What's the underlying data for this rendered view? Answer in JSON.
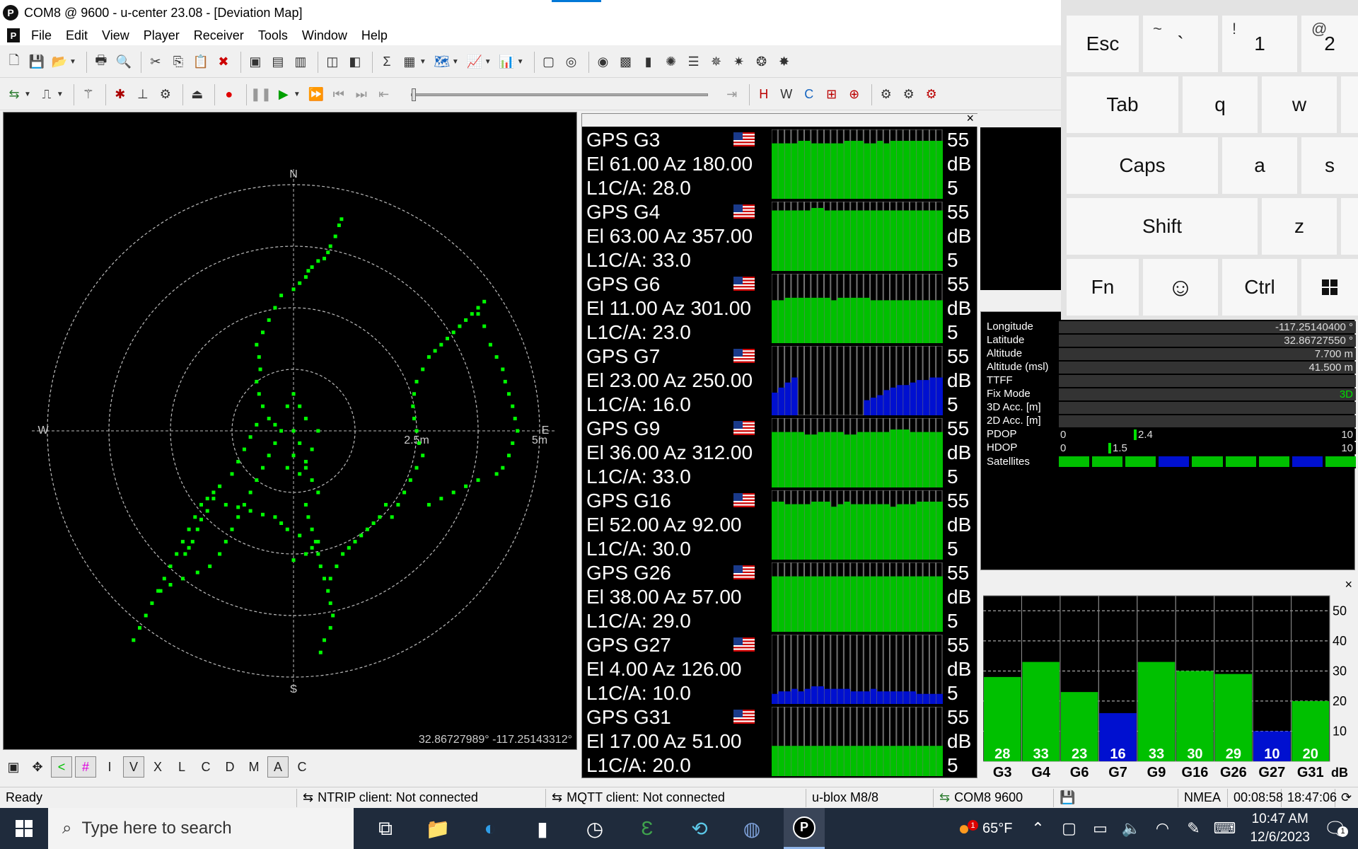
{
  "window": {
    "title": "COM8 @ 9600 - u-center 23.08 - [Deviation Map]",
    "logo_letter": "P"
  },
  "menu": [
    "File",
    "Edit",
    "View",
    "Player",
    "Receiver",
    "Tools",
    "Window",
    "Help"
  ],
  "map": {
    "compass": {
      "n": "N",
      "s": "S",
      "e": "E",
      "w": "W"
    },
    "ring_labels": {
      "inner": "2.5m",
      "outer": "5m"
    },
    "coord_readout": "32.86727989° -117.25143312°",
    "track_color": "#00ff00",
    "track": [
      [
        0.39,
        -1.72
      ],
      [
        0.37,
        -1.67
      ],
      [
        0.34,
        -1.58
      ],
      [
        0.3,
        -1.5
      ],
      [
        0.28,
        -1.45
      ],
      [
        0.25,
        -1.4
      ],
      [
        0.2,
        -1.38
      ],
      [
        0.15,
        -1.33
      ],
      [
        0.12,
        -1.3
      ],
      [
        0.1,
        -1.25
      ],
      [
        0.05,
        -1.2
      ],
      [
        0.0,
        -1.15
      ],
      [
        -0.1,
        -1.1
      ],
      [
        -0.15,
        -1.0
      ],
      [
        -0.2,
        -0.9
      ],
      [
        -0.25,
        -0.8
      ],
      [
        -0.3,
        -0.7
      ],
      [
        -0.28,
        -0.6
      ],
      [
        -0.27,
        -0.5
      ],
      [
        -0.3,
        -0.4
      ],
      [
        -0.28,
        -0.3
      ],
      [
        -0.25,
        -0.2
      ],
      [
        -0.2,
        -0.1
      ],
      [
        -0.15,
        -0.05
      ],
      [
        -0.1,
        0.0
      ],
      [
        -0.15,
        0.1
      ],
      [
        -0.2,
        0.2
      ],
      [
        -0.25,
        0.3
      ],
      [
        -0.3,
        0.4
      ],
      [
        -0.35,
        0.5
      ],
      [
        -0.4,
        0.6
      ],
      [
        -0.45,
        0.7
      ],
      [
        -0.5,
        0.8
      ],
      [
        -0.55,
        0.9
      ],
      [
        -0.6,
        1.0
      ],
      [
        -0.68,
        1.1
      ],
      [
        -0.78,
        1.15
      ],
      [
        -0.9,
        1.2
      ],
      [
        -1.0,
        1.25
      ],
      [
        -1.08,
        1.3
      ],
      [
        -1.3,
        1.7
      ],
      [
        -1.25,
        1.6
      ],
      [
        -1.2,
        1.5
      ],
      [
        -1.15,
        1.4
      ],
      [
        -1.1,
        1.3
      ],
      [
        -1.05,
        1.2
      ],
      [
        -1.0,
        1.1
      ],
      [
        -0.95,
        1.0
      ],
      [
        -0.9,
        0.9
      ],
      [
        -0.85,
        0.8
      ],
      [
        -0.8,
        0.7
      ],
      [
        -0.75,
        0.6
      ],
      [
        -0.7,
        0.55
      ],
      [
        -0.65,
        0.5
      ],
      [
        -0.6,
        0.45
      ],
      [
        -0.5,
        0.35
      ],
      [
        -0.45,
        0.25
      ],
      [
        -0.4,
        0.15
      ],
      [
        -0.35,
        0.05
      ],
      [
        -0.3,
        -0.05
      ],
      [
        -0.65,
        0.55
      ],
      [
        -0.7,
        0.65
      ],
      [
        -0.75,
        0.72
      ],
      [
        -0.78,
        0.8
      ],
      [
        -0.82,
        0.9
      ],
      [
        -0.85,
        0.95
      ],
      [
        -0.88,
        1.0
      ],
      [
        0.0,
        1.05
      ],
      [
        0.1,
        1.0
      ],
      [
        0.15,
        0.95
      ],
      [
        0.2,
        0.9
      ],
      [
        0.05,
        0.85
      ],
      [
        -0.05,
        0.8
      ],
      [
        -0.1,
        0.75
      ],
      [
        -0.15,
        0.7
      ],
      [
        -0.25,
        0.68
      ],
      [
        -0.35,
        0.65
      ],
      [
        -0.45,
        0.62
      ],
      [
        -0.55,
        0.6
      ],
      [
        0.1,
        0.6
      ],
      [
        0.12,
        0.7
      ],
      [
        0.15,
        0.8
      ],
      [
        0.18,
        0.9
      ],
      [
        0.2,
        1.0
      ],
      [
        0.22,
        1.1
      ],
      [
        0.25,
        1.2
      ],
      [
        0.28,
        1.3
      ],
      [
        0.3,
        1.4
      ],
      [
        0.32,
        1.5
      ],
      [
        0.3,
        1.6
      ],
      [
        0.25,
        1.7
      ],
      [
        0.22,
        1.8
      ],
      [
        0.3,
        1.2
      ],
      [
        0.35,
        1.1
      ],
      [
        0.4,
        1.0
      ],
      [
        0.45,
        0.95
      ],
      [
        0.5,
        0.9
      ],
      [
        0.55,
        0.85
      ],
      [
        0.6,
        0.8
      ],
      [
        0.65,
        0.75
      ],
      [
        0.7,
        0.7
      ],
      [
        0.75,
        0.6
      ],
      [
        0.0,
        0.0
      ],
      [
        0.05,
        0.1
      ],
      [
        0.0,
        0.2
      ],
      [
        -0.05,
        0.3
      ],
      [
        0.05,
        0.35
      ],
      [
        0.1,
        0.25
      ],
      [
        0.15,
        0.15
      ],
      [
        0.2,
        0.0
      ],
      [
        0.1,
        -0.1
      ],
      [
        0.05,
        -0.2
      ],
      [
        0.0,
        -0.3
      ],
      [
        -0.05,
        -0.2
      ],
      [
        0.1,
        0.3
      ],
      [
        0.15,
        0.4
      ],
      [
        0.2,
        0.5
      ],
      [
        1.55,
        -1.05
      ],
      [
        1.5,
        -1.0
      ],
      [
        1.45,
        -0.95
      ],
      [
        1.4,
        -0.9
      ],
      [
        1.35,
        -0.85
      ],
      [
        1.3,
        -0.8
      ],
      [
        1.25,
        -0.75
      ],
      [
        1.2,
        -0.7
      ],
      [
        1.15,
        -0.65
      ],
      [
        1.1,
        -0.6
      ],
      [
        1.05,
        -0.5
      ],
      [
        1.0,
        -0.4
      ],
      [
        0.98,
        -0.3
      ],
      [
        0.97,
        -0.2
      ],
      [
        0.98,
        -0.1
      ],
      [
        1.0,
        0.0
      ],
      [
        1.02,
        0.1
      ],
      [
        1.05,
        0.2
      ],
      [
        1.0,
        0.3
      ],
      [
        0.95,
        0.4
      ],
      [
        0.9,
        0.5
      ],
      [
        0.85,
        0.6
      ],
      [
        0.8,
        0.7
      ],
      [
        1.5,
        -0.95
      ],
      [
        1.55,
        -0.85
      ],
      [
        1.6,
        -0.7
      ],
      [
        1.65,
        -0.6
      ],
      [
        1.7,
        -0.5
      ],
      [
        1.72,
        -0.4
      ],
      [
        1.75,
        -0.3
      ],
      [
        1.78,
        -0.2
      ],
      [
        1.8,
        -0.1
      ],
      [
        1.82,
        0.0
      ],
      [
        1.78,
        0.1
      ],
      [
        1.75,
        0.2
      ],
      [
        1.7,
        0.3
      ],
      [
        1.65,
        0.35
      ],
      [
        1.5,
        0.4
      ],
      [
        1.4,
        0.45
      ],
      [
        1.3,
        0.5
      ],
      [
        1.2,
        0.55
      ],
      [
        1.1,
        0.6
      ]
    ]
  },
  "satellites": [
    {
      "id": "GPS G3",
      "el": "El 61.00 Az 180.00",
      "cno_text": "L1C/A: 28.0",
      "bars": [
        22,
        22,
        22,
        22,
        23,
        23,
        22,
        22,
        22,
        22,
        22,
        23,
        23,
        23,
        22,
        22,
        23,
        22,
        23,
        23,
        23,
        23,
        23,
        23,
        23,
        23
      ],
      "color": "#00c000"
    },
    {
      "id": "GPS G4",
      "el": "El 63.00 Az 357.00",
      "cno_text": "L1C/A: 33.0",
      "bars": [
        24,
        24,
        24,
        24,
        24,
        24,
        25,
        25,
        24,
        24,
        24,
        24,
        24,
        24,
        24,
        24,
        24,
        24,
        24,
        24,
        24,
        24,
        24,
        24,
        24,
        24
      ],
      "color": "#00c000"
    },
    {
      "id": "GPS G6",
      "el": "El 11.00 Az 301.00",
      "cno_text": "L1C/A: 23.0",
      "bars": [
        17,
        17,
        18,
        18,
        18,
        18,
        18,
        18,
        18,
        17,
        18,
        18,
        18,
        18,
        18,
        17,
        17,
        17,
        17,
        17,
        17,
        17,
        17,
        17,
        17,
        17
      ],
      "color": "#00c000"
    },
    {
      "id": "GPS G7",
      "el": "El 23.00 Az 250.00",
      "cno_text": "L1C/A: 16.0",
      "bars": [
        9,
        11,
        13,
        15,
        0,
        0,
        0,
        0,
        0,
        0,
        0,
        0,
        0,
        0,
        6,
        7,
        8,
        10,
        11,
        12,
        12,
        13,
        14,
        14,
        15,
        15
      ],
      "color": "#0010d0"
    },
    {
      "id": "GPS G9",
      "el": "El 36.00 Az 312.00",
      "cno_text": "L1C/A: 33.0",
      "bars": [
        22,
        22,
        22,
        22,
        22,
        21,
        21,
        22,
        22,
        22,
        22,
        21,
        21,
        22,
        22,
        22,
        22,
        22,
        23,
        23,
        23,
        22,
        22,
        22,
        22,
        22
      ],
      "color": "#00c000"
    },
    {
      "id": "GPS G16",
      "el": "El 52.00 Az 92.00",
      "cno_text": "L1C/A: 30.0",
      "bars": [
        23,
        23,
        22,
        22,
        22,
        22,
        23,
        23,
        23,
        21,
        22,
        23,
        22,
        22,
        22,
        22,
        22,
        22,
        21,
        22,
        22,
        22,
        23,
        23,
        23,
        23
      ],
      "color": "#00c000"
    },
    {
      "id": "GPS G26",
      "el": "El 38.00 Az 57.00",
      "cno_text": "L1C/A: 29.0",
      "bars": [
        22,
        22,
        22,
        22,
        22,
        22,
        22,
        22,
        22,
        22,
        22,
        22,
        22,
        22,
        22,
        22,
        22,
        22,
        22,
        22,
        22,
        22,
        22,
        22,
        22,
        22
      ],
      "color": "#00c000"
    },
    {
      "id": "GPS G27",
      "el": "El 4.00 Az 126.00",
      "cno_text": "L1C/A: 10.0",
      "bars": [
        4,
        5,
        5,
        6,
        5,
        6,
        7,
        7,
        6,
        6,
        6,
        6,
        5,
        5,
        5,
        6,
        5,
        5,
        5,
        5,
        5,
        5,
        4,
        4,
        4,
        4
      ],
      "color": "#0010d0"
    },
    {
      "id": "GPS G31",
      "el": "El 17.00 Az 51.00",
      "cno_text": "L1C/A: 20.0",
      "bars": [
        12,
        12,
        12,
        12,
        12,
        12,
        12,
        12,
        12,
        12,
        12,
        12,
        12,
        12,
        12,
        12,
        12,
        12,
        12,
        12,
        12,
        12,
        12,
        12,
        12,
        12
      ],
      "color": "#00c000"
    }
  ],
  "sat_scale": {
    "top": "55",
    "unit": "dB",
    "bottom": "5"
  },
  "nav": {
    "rows": [
      {
        "label": "Longitude",
        "value": "-117.25140400 °"
      },
      {
        "label": "Latitude",
        "value": "32.86727550 °"
      },
      {
        "label": "Altitude",
        "value": "7.700 m"
      },
      {
        "label": "Altitude (msl)",
        "value": "41.500 m"
      },
      {
        "label": "TTFF",
        "value": ""
      },
      {
        "label": "Fix Mode",
        "value": "3D"
      },
      {
        "label": "3D Acc. [m]",
        "value": ""
      },
      {
        "label": "2D Acc. [m]",
        "value": ""
      }
    ],
    "pdop": {
      "label": "PDOP",
      "min": "0",
      "max": "10",
      "value": "2.4"
    },
    "hdop": {
      "label": "HDOP",
      "min": "0",
      "max": "10",
      "value": "1.5"
    },
    "satellites_label": "Satellites",
    "sat_colors": [
      "#00c000",
      "#00c000",
      "#00c000",
      "#0010d0",
      "#00c000",
      "#00c000",
      "#00c000",
      "#0010d0",
      "#00c000"
    ]
  },
  "cno_chart": {
    "y_ticks": [
      "50",
      "40",
      "30",
      "20",
      "10"
    ],
    "unit": "dB",
    "bars": [
      {
        "label": "G3",
        "value": "28",
        "color": "#00c000"
      },
      {
        "label": "G4",
        "value": "33",
        "color": "#00c000"
      },
      {
        "label": "G6",
        "value": "23",
        "color": "#00c000"
      },
      {
        "label": "G7",
        "value": "16",
        "color": "#0010d0"
      },
      {
        "label": "G9",
        "value": "33",
        "color": "#00c000"
      },
      {
        "label": "G16",
        "value": "30",
        "color": "#00c000"
      },
      {
        "label": "G26",
        "value": "29",
        "color": "#00c000"
      },
      {
        "label": "G27",
        "value": "10",
        "color": "#0010d0"
      },
      {
        "label": "G31",
        "value": "20",
        "color": "#00c000"
      }
    ]
  },
  "keyboard": {
    "esc": "Esc",
    "tilde_sub": "~",
    "tilde": "`",
    "one_sub": "!",
    "one": "1",
    "two_sub": "@",
    "two": "2",
    "tab": "Tab",
    "q": "q",
    "w": "w",
    "caps": "Caps",
    "a": "a",
    "s": "s",
    "shift": "Shift",
    "z": "z",
    "fn": "Fn",
    "ctrl": "Ctrl"
  },
  "statusbar": {
    "ready": "Ready",
    "ntrip": "NTRIP client: Not connected",
    "mqtt": "MQTT client: Not connected",
    "receiver": "u-blox M8/8",
    "port": "COM8 9600",
    "protocol": "NMEA",
    "elapsed": "00:08:58",
    "time": "18:47:06"
  },
  "taskbar": {
    "search_placeholder": "Type here to search",
    "weather": "65°F",
    "weather_badge": "1",
    "clock_time": "10:47 AM",
    "clock_date": "12/6/2023",
    "notification_count": "1"
  }
}
